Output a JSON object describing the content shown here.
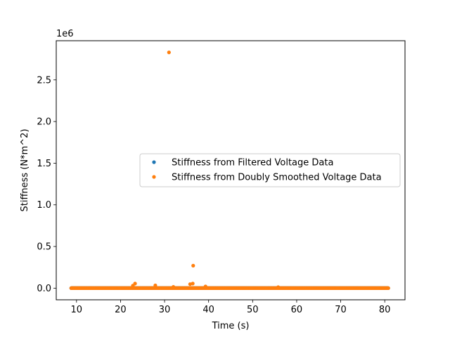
{
  "chart_data": {
    "type": "scatter",
    "title": "",
    "xlabel": "Time (s)",
    "ylabel": "Stiffness (N*m^2)",
    "y_offset_label": "1e6",
    "xlim": [
      5.4,
      84.6
    ],
    "ylim": [
      -0.14,
      2.97
    ],
    "y_scale": 1000000,
    "xticks": [
      10,
      20,
      30,
      40,
      50,
      60,
      70,
      80
    ],
    "yticks": [
      0.0,
      0.5,
      1.0,
      1.5,
      2.0,
      2.5
    ],
    "ytick_labels": [
      "0.0",
      "0.5",
      "1.0",
      "1.5",
      "2.0",
      "2.5"
    ],
    "grid": false,
    "legend_position": "center-right",
    "series": [
      {
        "name": "Stiffness from Filtered Voltage Data",
        "color": "#1f77b4",
        "x_range": [
          8.8,
          80.8
        ],
        "baseline_value": 0
      },
      {
        "name": "Stiffness from Doubly Smoothed Voltage Data",
        "color": "#ff7f0e",
        "x_range": [
          8.8,
          80.8
        ],
        "baseline_value": 0,
        "outliers": [
          {
            "x": 31.0,
            "y": 2830000
          },
          {
            "x": 36.5,
            "y": 270000
          },
          {
            "x": 23.3,
            "y": 55000
          },
          {
            "x": 22.8,
            "y": 30000
          },
          {
            "x": 27.9,
            "y": 33000
          },
          {
            "x": 35.8,
            "y": 48000
          },
          {
            "x": 36.4,
            "y": 55000
          },
          {
            "x": 39.3,
            "y": 20000
          },
          {
            "x": 32.0,
            "y": 15000
          },
          {
            "x": 55.8,
            "y": 12000
          }
        ]
      }
    ]
  }
}
